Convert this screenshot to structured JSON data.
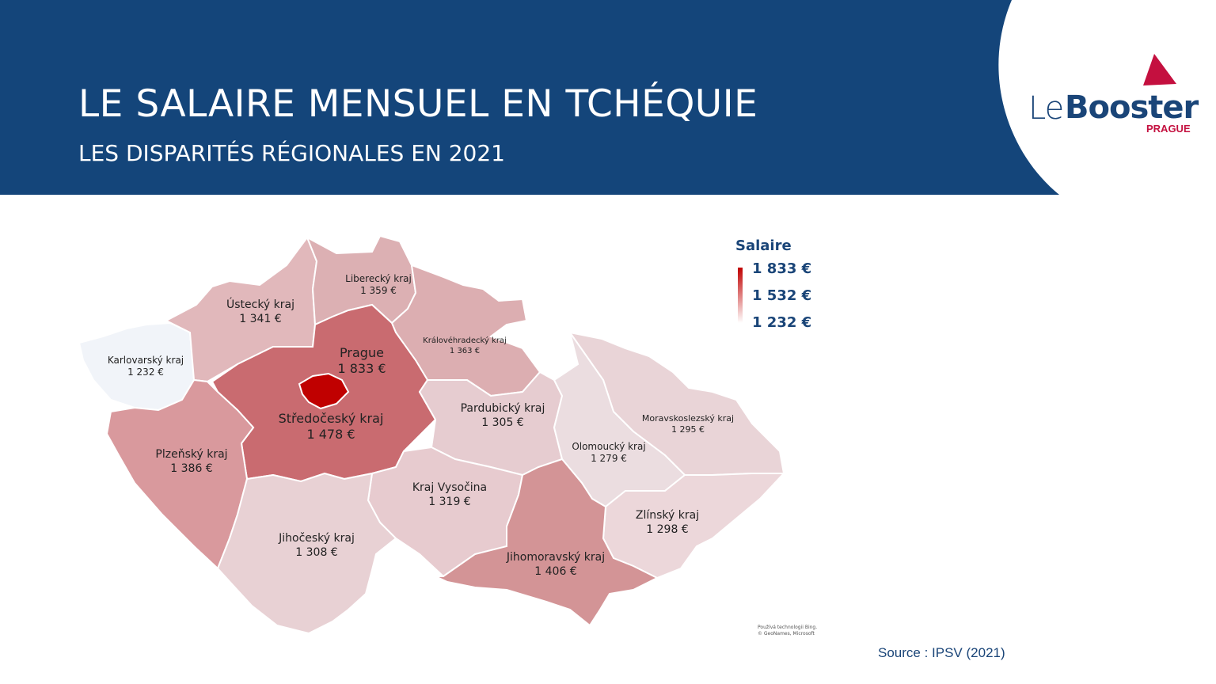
{
  "header": {
    "title": "LE SALAIRE MENSUEL EN TCHÉQUIE",
    "subtitle": "LES DISPARITÉS RÉGIONALES EN 2021",
    "background_color": "#14457a"
  },
  "logo": {
    "le": "Le",
    "booster": "Booster",
    "city": "PRAGUE",
    "accent_color": "#c4103f"
  },
  "legend": {
    "title": "Salaire",
    "max": "1 833 €",
    "mid": "1 532 €",
    "min": "1 232 €",
    "color_high": "#c00000",
    "color_low": "#ffffff"
  },
  "regions": {
    "karlovarsky": {
      "name": "Karlovarský kraj",
      "value": "1 232 €",
      "salary": 1232
    },
    "ustecky": {
      "name": "Ústecký kraj",
      "value": "1 341 €",
      "salary": 1341
    },
    "liberecky": {
      "name": "Liberecký kraj",
      "value": "1 359 €",
      "salary": 1359
    },
    "kralovehradecky": {
      "name": "Královéhradecký kraj",
      "value": "1 363 €",
      "salary": 1363
    },
    "prague": {
      "name": "Prague",
      "value": "1 833 €",
      "salary": 1833
    },
    "stredocesky": {
      "name": "Středočeský kraj",
      "value": "1 478 €",
      "salary": 1478
    },
    "plzensky": {
      "name": "Plzeňský kraj",
      "value": "1 386 €",
      "salary": 1386
    },
    "pardubicky": {
      "name": "Pardubický kraj",
      "value": "1 305 €",
      "salary": 1305
    },
    "moravskoslezsky": {
      "name": "Moravskoslezský kraj",
      "value": "1 295 €",
      "salary": 1295
    },
    "olomoucky": {
      "name": "Olomoucký kraj",
      "value": "1 279 €",
      "salary": 1279
    },
    "vysocina": {
      "name": "Kraj Vysočina",
      "value": "1 319 €",
      "salary": 1319
    },
    "jihocesky": {
      "name": "Jihočeský kraj",
      "value": "1 308 €",
      "salary": 1308
    },
    "zlinsky": {
      "name": "Zlínský kraj",
      "value": "1 298 €",
      "salary": 1298
    },
    "jihomoravsky": {
      "name": "Jihomoravský kraj",
      "value": "1 406 €",
      "salary": 1406
    }
  },
  "attribution": {
    "line1": "Používá technologii Bing.",
    "line2": "© GeoNames, Microsoft"
  },
  "source": "Source : IPSV (2021)"
}
